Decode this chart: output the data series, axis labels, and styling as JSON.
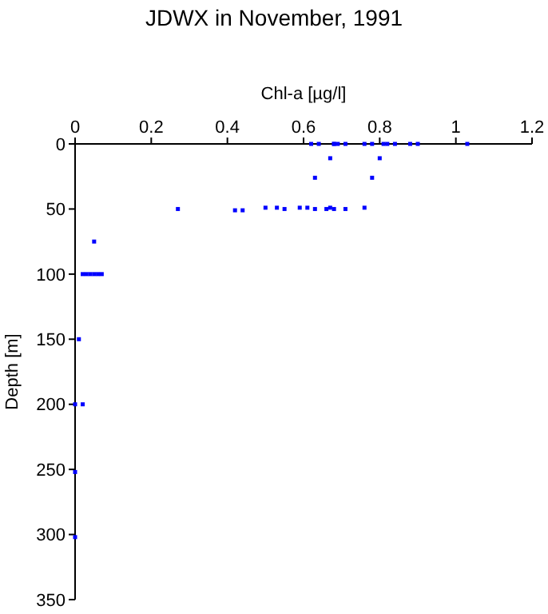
{
  "chart_data": {
    "type": "scatter",
    "title": "JDWX in November, 1991",
    "xlabel": "Chl-a [µg/l]",
    "ylabel": "Depth [m]",
    "xlim": [
      0,
      1.2
    ],
    "xticks": [
      0,
      0.2,
      0.4,
      0.6,
      0.8,
      1,
      1.2
    ],
    "ylim": [
      350,
      0
    ],
    "yticks": [
      0,
      50,
      100,
      150,
      200,
      250,
      300,
      350
    ],
    "marker": "square",
    "series": [
      {
        "color": "#0000ff",
        "x": [
          0.62,
          0.64,
          0.68,
          0.68,
          0.69,
          0.71,
          0.76,
          0.78,
          0.81,
          0.82,
          0.84,
          0.88,
          0.9,
          1.03,
          0.67,
          0.8,
          0.63,
          0.78,
          0.27,
          0.42,
          0.44,
          0.5,
          0.53,
          0.55,
          0.59,
          0.61,
          0.63,
          0.66,
          0.67,
          0.68,
          0.71,
          0.76,
          0.05,
          0.02,
          0.03,
          0.04,
          0.05,
          0.06,
          0.07,
          0.01,
          0,
          0.02,
          0,
          0
        ],
        "values": [
          0,
          0,
          0,
          0,
          0,
          0,
          0,
          0,
          0,
          0,
          0,
          0,
          0,
          0,
          11,
          11,
          26,
          26,
          50,
          51,
          51,
          49,
          49,
          50,
          49,
          49,
          50,
          50,
          49,
          50,
          50,
          49,
          75,
          100,
          100,
          100,
          100,
          100,
          100,
          150,
          200,
          200,
          252,
          302
        ]
      }
    ]
  }
}
